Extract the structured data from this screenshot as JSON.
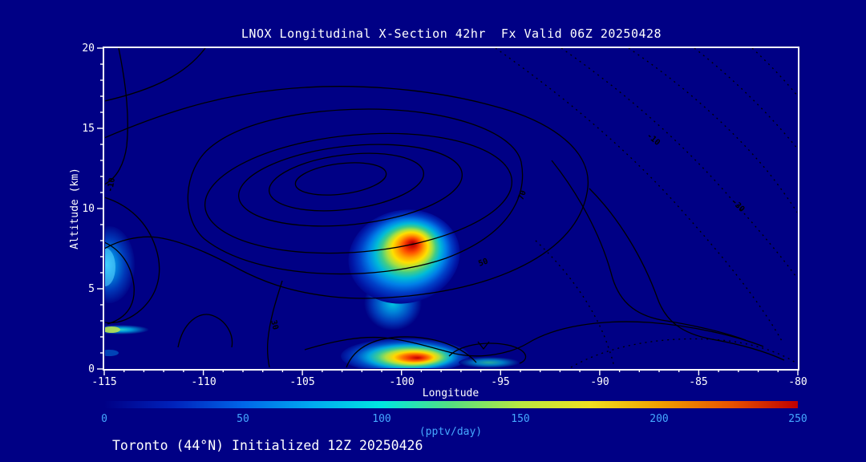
{
  "title": "LNOX Longitudinal X-Section 42hr  Fx Valid 06Z 20250428",
  "footer": "Toronto (44°N) Initialized 12Z 20250426",
  "chart_data": {
    "type": "heatmap",
    "title": "LNOX Longitudinal X-Section 42hr  Fx Valid 06Z 20250428",
    "xlabel": "Longitude",
    "ylabel": "Altitude (km)",
    "xlim": [
      -115,
      -80
    ],
    "ylim": [
      0,
      20
    ],
    "x_ticks": [
      "-115",
      "-110",
      "-105",
      "-100",
      "-95",
      "-90",
      "-85",
      "-80"
    ],
    "y_ticks": [
      "0",
      "5",
      "10",
      "15",
      "20"
    ],
    "units": "pptv/day",
    "colorbar": {
      "label": "(pptv/day)",
      "ticks": [
        "0",
        "50",
        "100",
        "150",
        "200",
        "250"
      ],
      "range": [
        0,
        250
      ],
      "palette": [
        "#000085",
        "#0022bb",
        "#0066e8",
        "#00aaf0",
        "#00e8e0",
        "#55e080",
        "#b8e840",
        "#f0e020",
        "#f0a000",
        "#e85500",
        "#c00000"
      ]
    },
    "contour_labels": [
      "-10",
      "-30",
      "70",
      "-10",
      "50",
      "30"
    ],
    "shaded_features": [
      {
        "name": "midlevel-lnox-max",
        "longitude": -99.8,
        "altitude_km": 7.0,
        "peak_value_pptv_day": 250,
        "extent_lon": [
          -103,
          -96.5
        ],
        "extent_km": [
          3.5,
          9.8
        ]
      },
      {
        "name": "surface-lnox-max",
        "longitude": -99.7,
        "altitude_km": 0.6,
        "peak_value_pptv_day": 250,
        "extent_lon": [
          -103.5,
          -94
        ],
        "extent_km": [
          0,
          2.5
        ]
      },
      {
        "name": "west-edge-plume",
        "longitude": -114.7,
        "altitude_km": 6.5,
        "peak_value_pptv_day": 90,
        "extent_lon": [
          -115,
          -113.3
        ],
        "extent_km": [
          4,
          8.5
        ]
      },
      {
        "name": "west-edge-streak",
        "longitude": -114.3,
        "altitude_km": 2.4,
        "peak_value_pptv_day": 120,
        "extent_lon": [
          -115,
          -112.5
        ],
        "extent_km": [
          2.1,
          2.7
        ]
      }
    ]
  },
  "colors": {
    "background": "#000085",
    "frame": "#ffffff",
    "title_text": "#ffffff",
    "tick_text": "#ffffff",
    "colorbar_text": "#45a8ff",
    "contour": "#000000"
  }
}
